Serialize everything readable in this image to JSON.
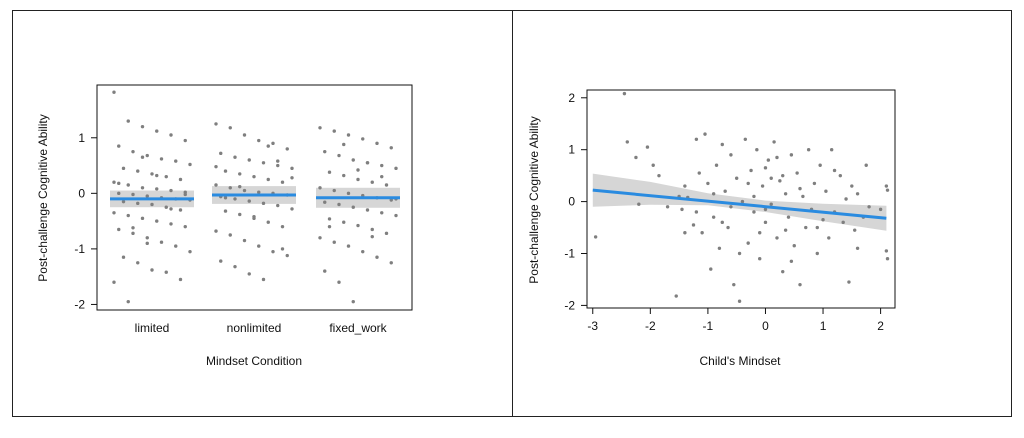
{
  "chart_data": [
    {
      "type": "scatter",
      "xlabel": "Mindset Condition",
      "ylabel": "Post-challenge Cognitive Ability",
      "categories": [
        "limited",
        "nonlimited",
        "fixed_work"
      ],
      "ylim": [
        -2.1,
        1.95
      ],
      "yticks": [
        -2,
        -1,
        0,
        1
      ],
      "fit": [
        {
          "category": "limited",
          "mean": -0.1,
          "lower": -0.25,
          "upper": 0.05
        },
        {
          "category": "nonlimited",
          "mean": -0.03,
          "lower": -0.19,
          "upper": 0.13
        },
        {
          "category": "fixed_work",
          "mean": -0.08,
          "lower": -0.26,
          "upper": 0.1
        }
      ],
      "points": [
        {
          "category": "limited",
          "y": [
            1.82,
            1.3,
            1.2,
            1.12,
            1.05,
            0.95,
            0.85,
            0.75,
            0.68,
            0.62,
            0.58,
            0.52,
            0.45,
            0.4,
            0.35,
            0.3,
            0.25,
            0.2,
            0.15,
            0.1,
            0.08,
            0.05,
            0.02,
            0.0,
            -0.02,
            -0.05,
            -0.08,
            -0.1,
            -0.12,
            -0.15,
            -0.18,
            -0.2,
            -0.25,
            -0.3,
            -0.35,
            -0.4,
            -0.45,
            -0.5,
            -0.55,
            -0.6,
            -0.65,
            -0.72,
            -0.8,
            -0.88,
            -0.95,
            -1.05,
            -1.15,
            -1.25,
            -1.38,
            -1.42,
            -1.55,
            -1.6,
            -1.95,
            0.65,
            0.32,
            -0.28,
            -0.02,
            0.18,
            -0.62,
            -0.9
          ]
        },
        {
          "category": "nonlimited",
          "y": [
            1.25,
            1.18,
            1.05,
            0.95,
            0.9,
            0.8,
            0.72,
            0.65,
            0.6,
            0.55,
            0.5,
            0.45,
            0.4,
            0.35,
            0.3,
            0.25,
            0.2,
            0.15,
            0.1,
            0.05,
            0.02,
            0.0,
            -0.03,
            -0.06,
            -0.1,
            -0.14,
            -0.18,
            -0.22,
            -0.28,
            -0.32,
            -0.38,
            -0.45,
            -0.52,
            -0.6,
            -0.68,
            -0.75,
            -0.85,
            -0.95,
            -1.05,
            -1.12,
            -1.22,
            -1.32,
            -1.45,
            -1.55,
            0.58,
            0.28,
            -0.08,
            0.12,
            -0.42,
            0.85,
            -1.0,
            0.48
          ]
        },
        {
          "category": "fixed_work",
          "y": [
            1.18,
            1.12,
            1.05,
            0.98,
            0.9,
            0.82,
            0.75,
            0.68,
            0.6,
            0.55,
            0.5,
            0.45,
            0.38,
            0.32,
            0.25,
            0.2,
            0.15,
            0.1,
            0.05,
            0.0,
            -0.04,
            -0.08,
            -0.12,
            -0.16,
            -0.2,
            -0.25,
            -0.3,
            -0.35,
            -0.4,
            -0.46,
            -0.52,
            -0.58,
            -0.65,
            -0.72,
            -0.8,
            -0.88,
            -0.95,
            -1.05,
            -1.15,
            -1.25,
            -1.4,
            -1.6,
            -1.95,
            0.55,
            0.3,
            -0.1,
            -0.6,
            0.88,
            0.42,
            -0.78
          ]
        }
      ]
    },
    {
      "type": "scatter",
      "xlabel": "Child's Mindset",
      "ylabel": "Post-challenge Cognitive Ability",
      "xlim": [
        -3.1,
        2.25
      ],
      "ylim": [
        -2.05,
        2.15
      ],
      "xticks": [
        -3,
        -2,
        -1,
        0,
        1,
        2
      ],
      "yticks": [
        -2,
        -1,
        0,
        1,
        2
      ],
      "fit_line": {
        "x": [
          -3,
          2.1
        ],
        "y": [
          0.22,
          -0.32
        ]
      },
      "ci_band": {
        "x": [
          -3,
          -2,
          -1,
          0,
          1,
          2.1
        ],
        "lower": [
          -0.1,
          -0.06,
          -0.07,
          -0.2,
          -0.38,
          -0.56
        ],
        "upper": [
          0.54,
          0.38,
          0.16,
          0.02,
          -0.04,
          -0.08
        ]
      },
      "points": [
        {
          "x": -2.95,
          "y": -0.68
        },
        {
          "x": -2.45,
          "y": 2.08
        },
        {
          "x": -2.4,
          "y": 1.15
        },
        {
          "x": -2.25,
          "y": 0.85
        },
        {
          "x": -2.2,
          "y": -0.05
        },
        {
          "x": -2.05,
          "y": 1.05
        },
        {
          "x": -1.95,
          "y": 0.7
        },
        {
          "x": -1.85,
          "y": 0.5
        },
        {
          "x": -1.7,
          "y": -0.1
        },
        {
          "x": -1.55,
          "y": -1.82
        },
        {
          "x": -1.5,
          "y": 0.1
        },
        {
          "x": -1.45,
          "y": -0.15
        },
        {
          "x": -1.4,
          "y": 0.3
        },
        {
          "x": -1.35,
          "y": 0.08
        },
        {
          "x": -1.25,
          "y": -0.45
        },
        {
          "x": -1.2,
          "y": 1.2
        },
        {
          "x": -1.15,
          "y": 0.55
        },
        {
          "x": -1.1,
          "y": -0.6
        },
        {
          "x": -1.05,
          "y": 1.3
        },
        {
          "x": -1.0,
          "y": 0.35
        },
        {
          "x": -0.95,
          "y": -1.3
        },
        {
          "x": -0.9,
          "y": -0.3
        },
        {
          "x": -0.85,
          "y": 0.7
        },
        {
          "x": -0.8,
          "y": -0.9
        },
        {
          "x": -0.75,
          "y": 1.1
        },
        {
          "x": -0.7,
          "y": 0.2
        },
        {
          "x": -0.65,
          "y": -0.5
        },
        {
          "x": -0.6,
          "y": 0.9
        },
        {
          "x": -0.55,
          "y": -1.6
        },
        {
          "x": -0.5,
          "y": 0.45
        },
        {
          "x": -0.45,
          "y": -1.92
        },
        {
          "x": -0.4,
          "y": 0.0
        },
        {
          "x": -0.35,
          "y": 1.2
        },
        {
          "x": -0.3,
          "y": -0.8
        },
        {
          "x": -0.25,
          "y": 0.6
        },
        {
          "x": -0.2,
          "y": -0.2
        },
        {
          "x": -0.15,
          "y": 1.0
        },
        {
          "x": -0.1,
          "y": -1.1
        },
        {
          "x": -0.05,
          "y": 0.3
        },
        {
          "x": 0.0,
          "y": -0.4
        },
        {
          "x": 0.05,
          "y": 0.8
        },
        {
          "x": 0.1,
          "y": -0.05
        },
        {
          "x": 0.15,
          "y": 1.15
        },
        {
          "x": 0.2,
          "y": -0.7
        },
        {
          "x": 0.25,
          "y": 0.4
        },
        {
          "x": 0.3,
          "y": -1.35
        },
        {
          "x": 0.35,
          "y": 0.15
        },
        {
          "x": 0.4,
          "y": -0.3
        },
        {
          "x": 0.45,
          "y": 0.9
        },
        {
          "x": 0.5,
          "y": -0.85
        },
        {
          "x": 0.55,
          "y": 0.55
        },
        {
          "x": 0.6,
          "y": -1.6
        },
        {
          "x": 0.65,
          "y": 0.1
        },
        {
          "x": 0.7,
          "y": -0.5
        },
        {
          "x": 0.75,
          "y": 1.0
        },
        {
          "x": 0.8,
          "y": -0.15
        },
        {
          "x": 0.85,
          "y": 0.35
        },
        {
          "x": 0.9,
          "y": -1.0
        },
        {
          "x": 0.95,
          "y": 0.7
        },
        {
          "x": 1.0,
          "y": -0.35
        },
        {
          "x": 1.05,
          "y": 0.2
        },
        {
          "x": 1.1,
          "y": -0.7
        },
        {
          "x": 1.15,
          "y": 1.0
        },
        {
          "x": 1.2,
          "y": -0.2
        },
        {
          "x": 1.3,
          "y": 0.5
        },
        {
          "x": 1.35,
          "y": -0.4
        },
        {
          "x": 1.4,
          "y": 0.05
        },
        {
          "x": 1.45,
          "y": -1.55
        },
        {
          "x": 1.5,
          "y": 0.3
        },
        {
          "x": 1.55,
          "y": -0.55
        },
        {
          "x": 1.6,
          "y": 0.15
        },
        {
          "x": 1.7,
          "y": -0.3
        },
        {
          "x": 1.75,
          "y": 0.7
        },
        {
          "x": 1.8,
          "y": -0.1
        },
        {
          "x": 2.0,
          "y": -0.15
        },
        {
          "x": 2.1,
          "y": 0.3
        },
        {
          "x": 2.1,
          "y": -0.95
        },
        {
          "x": 2.12,
          "y": 0.22
        },
        {
          "x": 2.12,
          "y": -1.1
        },
        {
          "x": -0.6,
          "y": -0.1
        },
        {
          "x": -0.3,
          "y": 0.35
        },
        {
          "x": 0.0,
          "y": 0.65
        },
        {
          "x": 0.3,
          "y": 0.5
        },
        {
          "x": -0.9,
          "y": 0.15
        },
        {
          "x": -1.2,
          "y": -0.2
        },
        {
          "x": 0.6,
          "y": 0.25
        },
        {
          "x": 0.9,
          "y": -0.5
        },
        {
          "x": -0.1,
          "y": -0.6
        },
        {
          "x": 0.2,
          "y": 0.85
        },
        {
          "x": -0.45,
          "y": -1.0
        },
        {
          "x": 0.45,
          "y": -1.15
        },
        {
          "x": -0.75,
          "y": -0.4
        },
        {
          "x": 1.2,
          "y": 0.6
        },
        {
          "x": 1.6,
          "y": -0.9
        },
        {
          "x": -1.4,
          "y": -0.6
        },
        {
          "x": 0.0,
          "y": -0.15
        },
        {
          "x": -0.2,
          "y": 0.1
        },
        {
          "x": 0.1,
          "y": 0.45
        },
        {
          "x": 0.35,
          "y": -0.55
        }
      ]
    }
  ]
}
